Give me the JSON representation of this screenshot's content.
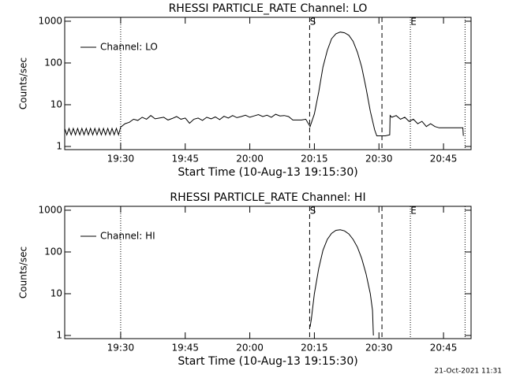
{
  "chart_data": [
    {
      "type": "line",
      "title": "RHESSI PARTICLE_RATE Channel: LO",
      "xlabel": "Start Time (10-Aug-13 19:15:30)",
      "ylabel": "Counts/sec",
      "log_y": true,
      "legend": "upper left",
      "xlim": [
        17,
        111.4
      ],
      "ylim": [
        0.84,
        1240
      ],
      "xticks": [
        {
          "value": 30,
          "label": "19:30"
        },
        {
          "value": 45,
          "label": "19:45"
        },
        {
          "value": 60,
          "label": "20:00"
        },
        {
          "value": 75,
          "label": "20:15"
        },
        {
          "value": 90,
          "label": "20:30"
        },
        {
          "value": 105,
          "label": "20:45"
        }
      ],
      "yticks": [
        1,
        10,
        100,
        1000
      ],
      "vlines": [
        {
          "x": 30,
          "style": "dotted"
        },
        {
          "x": 73.9,
          "style": "dashed",
          "label": "S"
        },
        {
          "x": 90.7,
          "style": "dashed"
        },
        {
          "x": 97.3,
          "style": "dotted",
          "label": "E"
        },
        {
          "x": 110,
          "style": "dotted"
        }
      ],
      "x": [
        17,
        17.5,
        18,
        18.5,
        19,
        19.5,
        20,
        20.5,
        21,
        21.5,
        22,
        22.5,
        23,
        23.5,
        24,
        24.5,
        25,
        25.5,
        26,
        26.5,
        27,
        27.5,
        28,
        28.5,
        29,
        29.5,
        30,
        31,
        32,
        33,
        34,
        35,
        36,
        37,
        38,
        39,
        40,
        41,
        42,
        43,
        44,
        45,
        46,
        47,
        48,
        49,
        50,
        51,
        52,
        53,
        54,
        55,
        56,
        57,
        58,
        59,
        60,
        61,
        62,
        63,
        64,
        65,
        66,
        67,
        68,
        69,
        70,
        71,
        72,
        73,
        74,
        75,
        76,
        77,
        78,
        79,
        80,
        81,
        82,
        83,
        84,
        85,
        86,
        87,
        88,
        89,
        89.5,
        90.5,
        91.5,
        92.5,
        92.6,
        93,
        94,
        95,
        96,
        97,
        98,
        99,
        100,
        101,
        102,
        103,
        104,
        105,
        106,
        107,
        108,
        109,
        109.5,
        109.6
      ],
      "series": [
        {
          "name": "Channel: LO",
          "color": "#000000",
          "values": [
            2.7,
            1.9,
            2.7,
            1.9,
            2.7,
            1.9,
            2.7,
            1.9,
            2.7,
            1.9,
            2.7,
            1.9,
            2.7,
            1.9,
            2.7,
            1.9,
            2.7,
            1.9,
            2.7,
            1.9,
            2.7,
            1.9,
            2.7,
            1.9,
            2.7,
            1.9,
            2.9,
            3.5,
            3.8,
            4.5,
            4.2,
            5,
            4.5,
            5.5,
            4.6,
            4.8,
            5,
            4.3,
            4.7,
            5.2,
            4.5,
            4.8,
            3.6,
            4.5,
            4.8,
            4.2,
            5,
            4.6,
            5.1,
            4.4,
            5.3,
            4.8,
            5.5,
            4.9,
            5.2,
            5.6,
            5,
            5.4,
            5.8,
            5.2,
            5.6,
            5,
            5.9,
            5.4,
            5.5,
            5.2,
            4.3,
            4.3,
            4.3,
            4.5,
            3,
            6,
            20,
            80,
            200,
            380,
            500,
            550,
            530,
            460,
            330,
            180,
            80,
            25,
            7,
            2.5,
            1.8,
            1.8,
            1.8,
            1.9,
            5.5,
            5,
            5.5,
            4.5,
            5,
            4,
            4.5,
            3.5,
            4,
            3,
            3.5,
            3,
            2.8,
            2.8,
            2.8,
            2.8,
            2.8,
            2.8,
            2.8,
            1.8
          ]
        }
      ]
    },
    {
      "type": "line",
      "title": "RHESSI PARTICLE_RATE Channel: HI",
      "xlabel": "Start Time (10-Aug-13 19:15:30)",
      "ylabel": "Counts/sec",
      "log_y": true,
      "legend": "upper left",
      "xlim": [
        17,
        111.4
      ],
      "ylim": [
        0.84,
        1240
      ],
      "xticks": [
        {
          "value": 30,
          "label": "19:30"
        },
        {
          "value": 45,
          "label": "19:45"
        },
        {
          "value": 60,
          "label": "20:00"
        },
        {
          "value": 75,
          "label": "20:15"
        },
        {
          "value": 90,
          "label": "20:30"
        },
        {
          "value": 105,
          "label": "20:45"
        }
      ],
      "yticks": [
        1,
        10,
        100,
        1000
      ],
      "vlines": [
        {
          "x": 30,
          "style": "dotted"
        },
        {
          "x": 73.9,
          "style": "dashed",
          "label": "S"
        },
        {
          "x": 90.7,
          "style": "dashed"
        },
        {
          "x": 97.3,
          "style": "dotted",
          "label": "E"
        },
        {
          "x": 110,
          "style": "dotted"
        }
      ],
      "x": [
        74,
        74.3,
        75,
        76,
        77,
        78,
        79,
        80,
        81,
        82,
        83,
        84,
        85,
        86,
        87,
        88,
        88.5,
        88.7
      ],
      "series": [
        {
          "name": "Channel: HI",
          "color": "#000000",
          "values": [
            1.6,
            2.5,
            10,
            40,
            110,
            200,
            280,
            330,
            340,
            320,
            270,
            200,
            130,
            70,
            30,
            10,
            4,
            1
          ]
        }
      ]
    }
  ],
  "footer": "21-Oct-2021 11:31"
}
